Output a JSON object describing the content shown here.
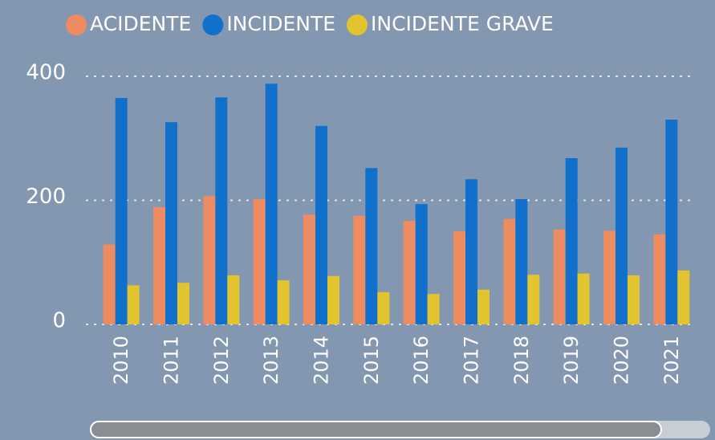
{
  "chart_data": {
    "type": "bar",
    "categories": [
      "2010",
      "2011",
      "2012",
      "2013",
      "2014",
      "2015",
      "2016",
      "2017",
      "2018",
      "2019",
      "2020",
      "2021"
    ],
    "series": [
      {
        "name": "ACIDENTE",
        "color": "#ed8b61",
        "values": [
          129,
          189,
          207,
          202,
          177,
          175,
          167,
          150,
          170,
          153,
          151,
          145
        ]
      },
      {
        "name": "INCIDENTE",
        "color": "#1170cc",
        "values": [
          365,
          326,
          366,
          388,
          320,
          252,
          194,
          234,
          202,
          268,
          285,
          330
        ]
      },
      {
        "name": "INCIDENTE GRAVE",
        "color": "#e2c42e",
        "values": [
          63,
          67,
          79,
          71,
          78,
          52,
          49,
          56,
          80,
          82,
          79,
          87
        ]
      }
    ],
    "ylim": [
      0,
      400
    ],
    "yticks": [
      0,
      200,
      400
    ],
    "grid": true
  }
}
